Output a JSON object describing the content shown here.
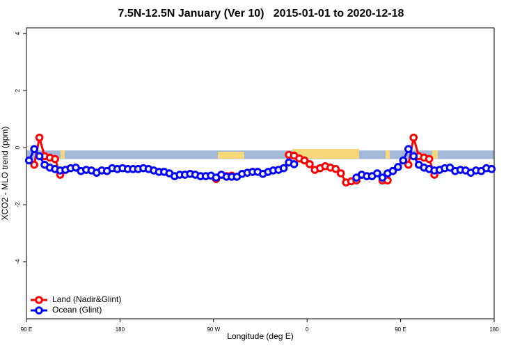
{
  "chart_data": {
    "type": "line",
    "title": "7.5N-12.5N January (Ver 10)   2015-01-01 to 2020-12-18",
    "xlabel": "Longitude (deg E)",
    "ylabel": "XCO2 - MLO trend (ppm)",
    "x": [
      92.5,
      97.5,
      102.5,
      107.5,
      112.5,
      117.5,
      122.5,
      127.5,
      132.5,
      137.5,
      142.5,
      147.5,
      152.5,
      157.5,
      162.5,
      167.5,
      172.5,
      177.5,
      182.5,
      187.5,
      192.5,
      197.5,
      202.5,
      207.5,
      212.5,
      217.5,
      222.5,
      227.5,
      232.5,
      237.5,
      242.5,
      247.5,
      252.5,
      257.5,
      262.5,
      267.5,
      272.5,
      277.5,
      282.5,
      287.5,
      292.5,
      297.5,
      302.5,
      307.5,
      312.5,
      317.5,
      322.5,
      327.5,
      332.5,
      337.5,
      342.5,
      347.5,
      352.5,
      357.5,
      362.5,
      367.5,
      372.5,
      377.5,
      382.5,
      387.5,
      392.5,
      397.5,
      402.5,
      407.5,
      412.5,
      417.5,
      422.5,
      427.5,
      432.5,
      437.5,
      442.5,
      447.5,
      452.5,
      457.5,
      462.5,
      467.5,
      472.5,
      477.5,
      482.5,
      487.5,
      492.5,
      497.5,
      502.5,
      507.5,
      512.5,
      517.5,
      522.5,
      527.5,
      532.5,
      537.5
    ],
    "series": [
      {
        "name": "Land (Nadir&Glint)",
        "color": "#ff0000",
        "values": [
          null,
          -0.6,
          0.35,
          -0.3,
          -0.35,
          -0.4,
          -0.95,
          null,
          null,
          null,
          null,
          null,
          null,
          null,
          null,
          null,
          null,
          null,
          null,
          null,
          null,
          null,
          null,
          null,
          null,
          null,
          null,
          null,
          null,
          null,
          null,
          null,
          null,
          null,
          null,
          null,
          -1.1,
          -0.95,
          -1.0,
          -0.98,
          null,
          null,
          null,
          null,
          null,
          null,
          null,
          null,
          null,
          null,
          -0.25,
          -0.28,
          -0.38,
          -0.45,
          -0.58,
          -0.78,
          -0.72,
          -0.65,
          -0.7,
          -0.75,
          -0.9,
          -1.22,
          -1.18,
          -1.15,
          null,
          null,
          null,
          null,
          -1.15,
          -1.15,
          null,
          null,
          null,
          -0.6,
          0.35,
          -0.3,
          -0.35,
          -0.4,
          -0.95,
          null,
          null,
          null,
          null,
          null,
          null,
          null,
          null,
          null,
          null,
          null
        ]
      },
      {
        "name": "Ocean (Glint)",
        "color": "#0000ff",
        "values": [
          -0.45,
          -0.05,
          -0.3,
          -0.6,
          -0.7,
          -0.75,
          -0.8,
          -0.78,
          -0.72,
          -0.7,
          -0.82,
          -0.78,
          -0.8,
          -0.88,
          -0.8,
          -0.82,
          -0.72,
          -0.75,
          -0.72,
          -0.75,
          -0.75,
          -0.75,
          -0.72,
          -0.75,
          -0.8,
          -0.85,
          -0.85,
          -0.9,
          -1.0,
          -0.95,
          -0.95,
          -0.92,
          -0.95,
          -1.0,
          -1.0,
          -0.98,
          -1.05,
          -0.95,
          -1.02,
          -1.02,
          -1.02,
          -0.92,
          -0.88,
          -0.85,
          -0.85,
          -0.92,
          -0.85,
          -0.8,
          -0.78,
          -0.72,
          -0.52,
          -0.58,
          null,
          null,
          null,
          null,
          null,
          null,
          null,
          null,
          null,
          null,
          null,
          -1.05,
          -0.95,
          -1.0,
          -1.0,
          -0.9,
          -1.05,
          -0.9,
          -0.82,
          -0.68,
          -0.45,
          -0.05,
          -0.3,
          -0.6,
          -0.7,
          -0.75,
          -0.8,
          -0.78,
          -0.72,
          -0.7,
          -0.82,
          -0.78,
          -0.8,
          -0.88,
          -0.8,
          -0.82,
          -0.72,
          -0.75
        ]
      }
    ],
    "reference_band": [
      -0.4,
      -0.1
    ],
    "band_color": "#a3b9d9",
    "xlim": [
      90,
      540
    ],
    "ylim": [
      -6,
      4.2
    ],
    "xticks": [
      {
        "value": 90,
        "label": "90 E"
      },
      180,
      {
        "value": 270,
        "label": "90 W"
      },
      {
        "value": 360,
        "label": "0"
      },
      {
        "value": 450,
        "label": "90 E"
      },
      {
        "value": 540,
        "label": "180"
      }
    ],
    "yticks": [
      -4,
      -2,
      0,
      2,
      4
    ],
    "legend": "bottom-left"
  }
}
